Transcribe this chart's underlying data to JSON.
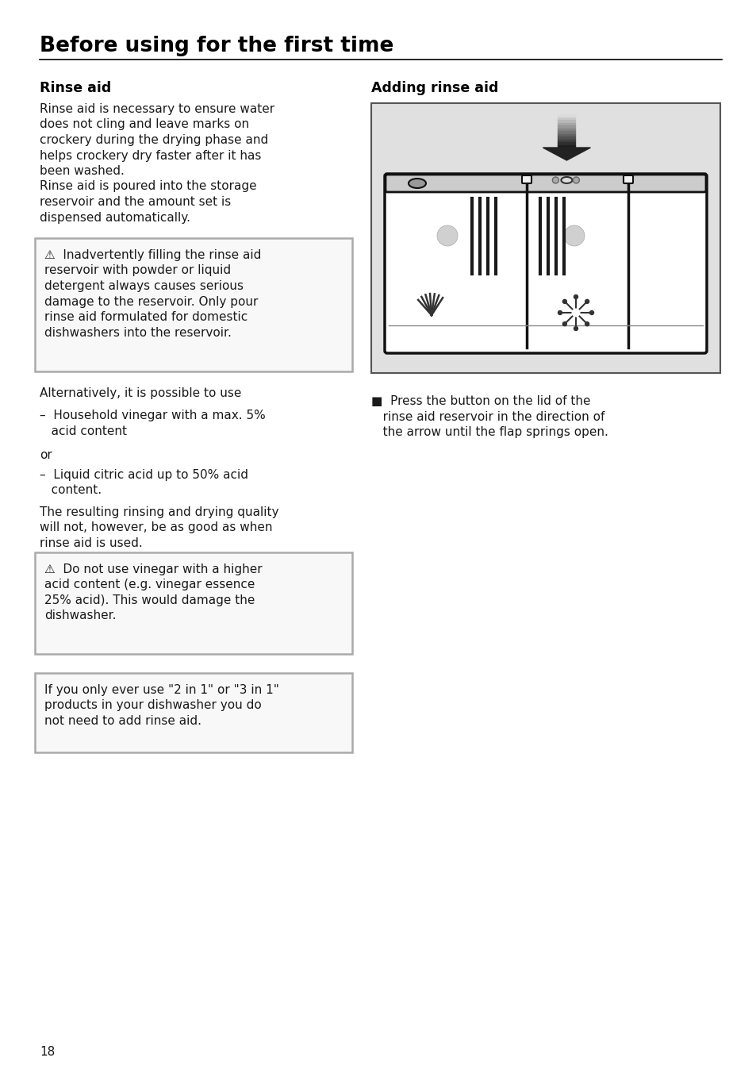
{
  "page_title": "Before using for the first time",
  "section1_title": "Rinse aid",
  "section2_title": "Adding rinse aid",
  "body_text1_line1": "Rinse aid is necessary to ensure water",
  "body_text1_line2": "does not cling and leave marks on",
  "body_text1_line3": "crockery during the drying phase and",
  "body_text1_line4": "helps crockery dry faster after it has",
  "body_text1_line5": "been washed.",
  "body_text1_line6": "Rinse aid is poured into the storage",
  "body_text1_line7": "reservoir and the amount set is",
  "body_text1_line8": "dispensed automatically.",
  "warning1_line1": "⚠  Inadvertently filling the rinse aid",
  "warning1_line2": "reservoir with powder or liquid",
  "warning1_line3": "detergent always causes serious",
  "warning1_line4": "damage to the reservoir. Only pour",
  "warning1_line5": "rinse aid formulated for domestic",
  "warning1_line6": "dishwashers into the reservoir.",
  "alt_text": "Alternatively, it is possible to use",
  "bullet1_line1": "–  Household vinegar with a max. 5%",
  "bullet1_line2": "   acid content",
  "or_text": "or",
  "bullet2_line1": "–  Liquid citric acid up to 50% acid",
  "bullet2_line2": "   content.",
  "body_text2_line1": "The resulting rinsing and drying quality",
  "body_text2_line2": "will not, however, be as good as when",
  "body_text2_line3": "rinse aid is used.",
  "warning2_line1": "⚠  Do not use vinegar with a higher",
  "warning2_line2": "acid content (e.g. vinegar essence",
  "warning2_line3": "25% acid). This would damage the",
  "warning2_line4": "dishwasher.",
  "info_line1": "If you only ever use \"2 in 1\" or \"3 in 1\"",
  "info_line2": "products in your dishwasher you do",
  "info_line3": "not need to add rinse aid.",
  "press_line1": "■  Press the button on the lid of the",
  "press_line2": "   rinse aid reservoir in the direction of",
  "press_line3": "   the arrow until the flap springs open.",
  "page_number": "18",
  "bg_color": "#ffffff",
  "text_color": "#1a1a1a",
  "box_border_color": "#aaaaaa",
  "title_color": "#000000",
  "line_color": "#000000",
  "diagram_bg": "#e0e0e0",
  "door_color": "#ffffff",
  "door_edge": "#111111",
  "gray_light": "#cccccc",
  "gray_mid": "#888888"
}
